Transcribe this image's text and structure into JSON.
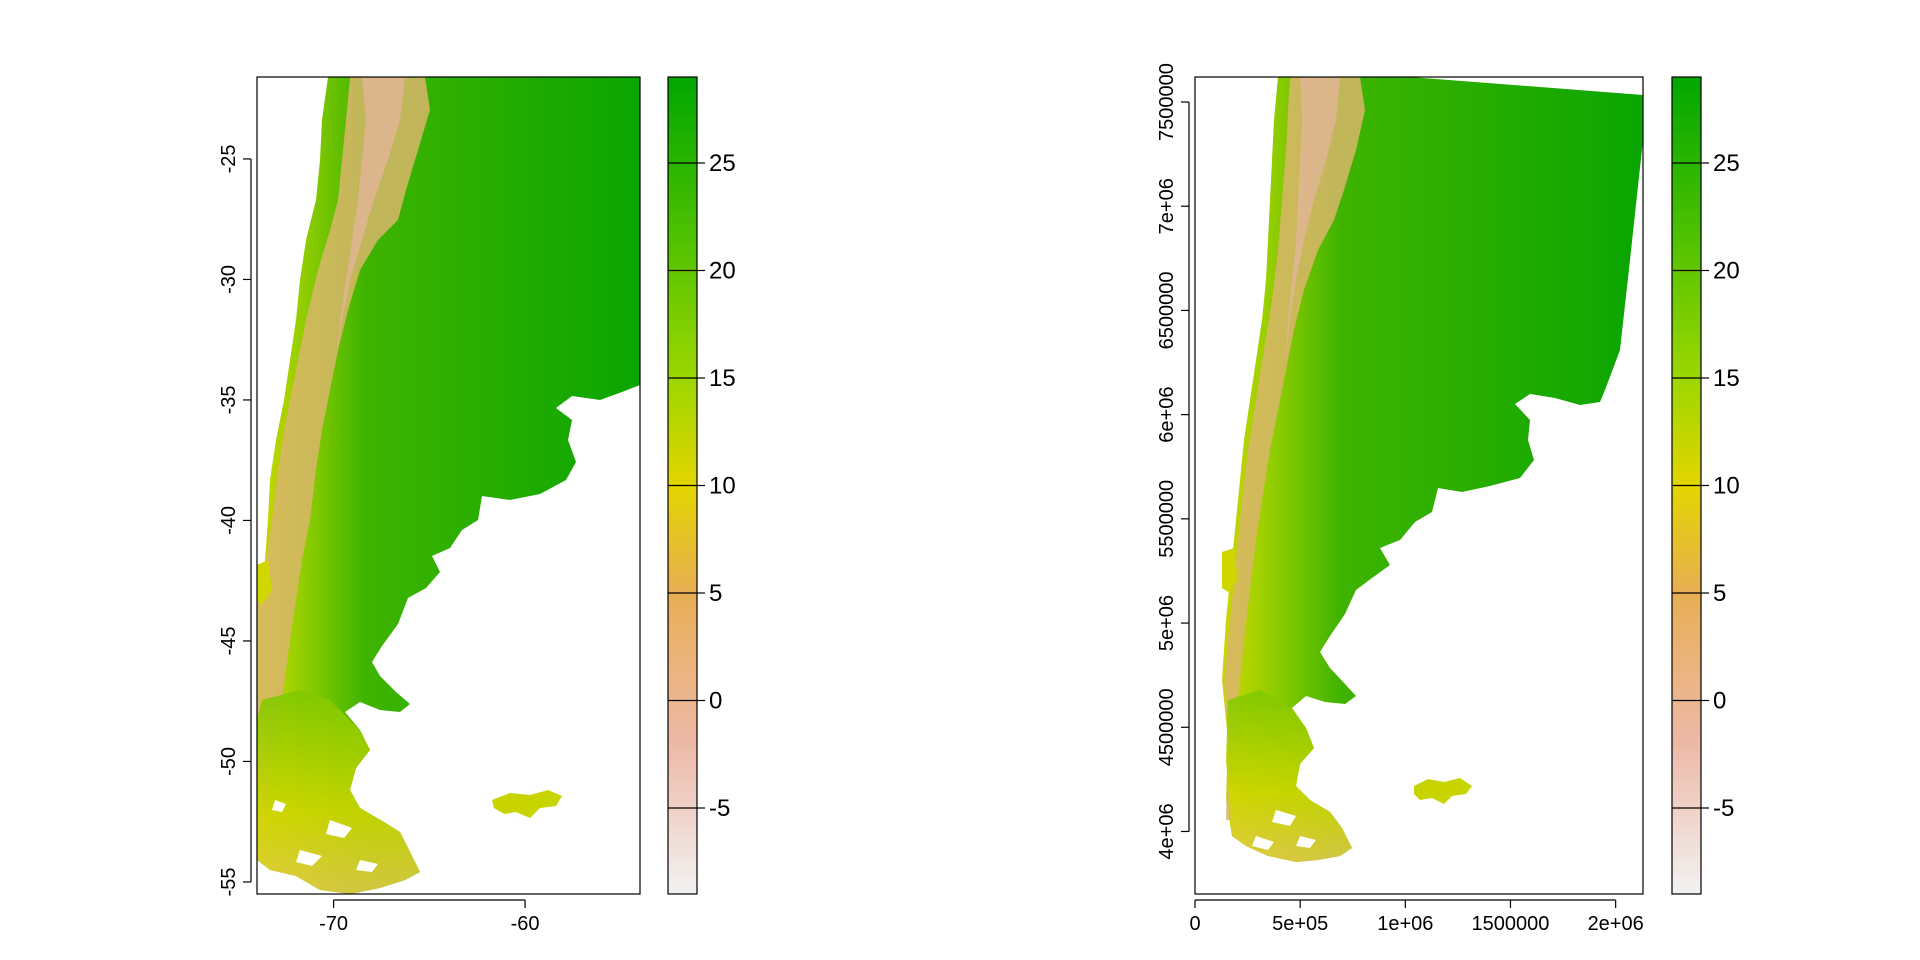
{
  "chart_data": [
    {
      "type": "heatmap",
      "title": "",
      "xlabel": "",
      "ylabel": "",
      "xlim": [
        -74.0,
        -54.0
      ],
      "ylim": [
        -55.5,
        -21.6
      ],
      "x_ticks": [
        -70,
        -60
      ],
      "x_tick_labels": [
        "-70",
        "-60"
      ],
      "y_ticks": [
        -25,
        -30,
        -35,
        -40,
        -45,
        -50,
        -55
      ],
      "y_tick_labels": [
        "-25",
        "-30",
        "-35",
        "-40",
        "-45",
        "-50",
        "-55"
      ],
      "legend": {
        "range": [
          -9,
          29
        ],
        "ticks": [
          -5,
          0,
          5,
          10,
          15,
          20,
          25
        ],
        "tick_labels": [
          "-5",
          "0",
          "5",
          "10",
          "15",
          "20",
          "25"
        ],
        "placement": "right"
      }
    },
    {
      "type": "heatmap",
      "title": "",
      "xlabel": "",
      "ylabel": "",
      "xlim": [
        0,
        2130000
      ],
      "ylim": [
        3700000,
        7620000
      ],
      "x_ticks": [
        0,
        500000,
        1000000,
        1500000,
        2000000
      ],
      "x_tick_labels": [
        "0",
        "5e+05",
        "1e+06",
        "1500000",
        "2e+06"
      ],
      "y_ticks": [
        4000000,
        4500000,
        5000000,
        5500000,
        6000000,
        6500000,
        7000000,
        7500000
      ],
      "y_tick_labels": [
        "4e+06",
        "4500000",
        "5e+06",
        "5500000",
        "6e+06",
        "6500000",
        "7e+06",
        "7500000"
      ],
      "legend": {
        "range": [
          -9,
          29
        ],
        "ticks": [
          -5,
          0,
          5,
          10,
          15,
          20,
          25
        ],
        "tick_labels": [
          "-5",
          "0",
          "5",
          "10",
          "15",
          "20",
          "25"
        ],
        "placement": "right"
      }
    }
  ],
  "colors": {
    "scale": [
      "#f2f2f2",
      "#edb9a7",
      "#e8ae55",
      "#e3d500",
      "#9cd600",
      "#50c200",
      "#00a600"
    ]
  }
}
